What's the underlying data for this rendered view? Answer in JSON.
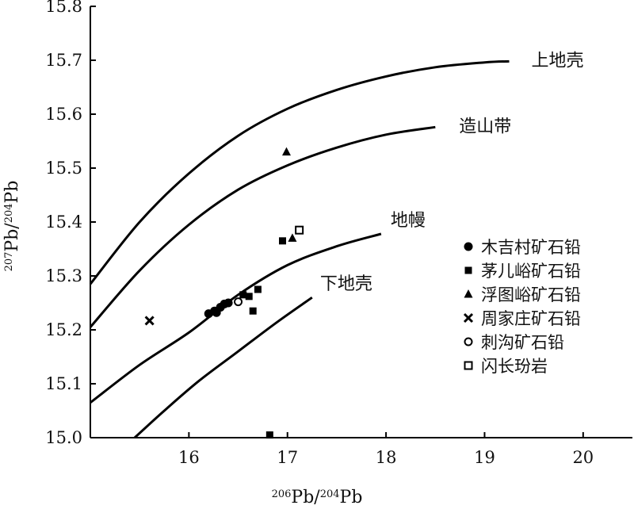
{
  "chart_data": {
    "type": "scatter",
    "title": "",
    "xlabel": {
      "parts": [
        {
          "text": "206",
          "sup": true
        },
        {
          "text": "Pb/",
          "sup": false
        },
        {
          "text": "204",
          "sup": true
        },
        {
          "text": "Pb",
          "sup": false
        }
      ]
    },
    "ylabel": {
      "parts": [
        {
          "text": "207",
          "sup": true
        },
        {
          "text": "Pb/",
          "sup": false
        },
        {
          "text": "204",
          "sup": true
        },
        {
          "text": "Pb",
          "sup": false
        }
      ]
    },
    "xlim": [
      15.0,
      20.5
    ],
    "ylim": [
      15.0,
      15.8
    ],
    "xticks": [
      16,
      17,
      18,
      19,
      20
    ],
    "yticks": [
      15.0,
      15.1,
      15.2,
      15.3,
      15.4,
      15.5,
      15.6,
      15.7,
      15.8
    ],
    "xtick_labels": [
      "16",
      "17",
      "18",
      "19",
      "20"
    ],
    "ytick_labels": [
      "15.0",
      "15.1",
      "15.2",
      "15.3",
      "15.4",
      "15.5",
      "15.6",
      "15.7",
      "15.8"
    ],
    "grid": false,
    "legend_position": "right",
    "curves": [
      {
        "label": "上地壳",
        "points": [
          [
            15.0,
            15.285
          ],
          [
            15.5,
            15.4
          ],
          [
            16.0,
            15.49
          ],
          [
            16.5,
            15.56
          ],
          [
            17.0,
            15.61
          ],
          [
            17.5,
            15.645
          ],
          [
            18.0,
            15.67
          ],
          [
            18.5,
            15.687
          ],
          [
            19.0,
            15.696
          ],
          [
            19.25,
            15.698
          ]
        ]
      },
      {
        "label": "造山带",
        "points": [
          [
            15.0,
            15.205
          ],
          [
            15.5,
            15.31
          ],
          [
            16.0,
            15.395
          ],
          [
            16.5,
            15.46
          ],
          [
            17.0,
            15.505
          ],
          [
            17.5,
            15.538
          ],
          [
            18.0,
            15.562
          ],
          [
            18.5,
            15.576
          ]
        ]
      },
      {
        "label": "地幔",
        "points": [
          [
            15.0,
            15.065
          ],
          [
            15.5,
            15.135
          ],
          [
            16.0,
            15.195
          ],
          [
            16.5,
            15.265
          ],
          [
            17.0,
            15.32
          ],
          [
            17.5,
            15.355
          ],
          [
            17.95,
            15.378
          ]
        ]
      },
      {
        "label": "下地壳",
        "points": [
          [
            15.45,
            15.0
          ],
          [
            15.75,
            15.05
          ],
          [
            16.1,
            15.105
          ],
          [
            16.5,
            15.16
          ],
          [
            16.9,
            15.215
          ],
          [
            17.25,
            15.26
          ]
        ]
      }
    ],
    "series": [
      {
        "name": "木吉村矿石铅",
        "marker": "circle",
        "points": [
          [
            16.2,
            15.23
          ],
          [
            16.26,
            15.235
          ],
          [
            16.28,
            15.232
          ],
          [
            16.32,
            15.242
          ],
          [
            16.36,
            15.248
          ],
          [
            16.4,
            15.25
          ]
        ]
      },
      {
        "name": "茅儿峪矿石铅",
        "marker": "square",
        "points": [
          [
            16.55,
            15.265
          ],
          [
            16.61,
            15.262
          ],
          [
            16.65,
            15.235
          ],
          [
            16.7,
            15.275
          ],
          [
            16.95,
            15.365
          ],
          [
            16.82,
            15.005
          ]
        ]
      },
      {
        "name": "浮图峪矿石铅",
        "marker": "triangle",
        "points": [
          [
            16.99,
            15.53
          ],
          [
            17.05,
            15.37
          ]
        ]
      },
      {
        "name": "周家庄矿石铅",
        "marker": "cross",
        "points": [
          [
            15.6,
            15.217
          ]
        ]
      },
      {
        "name": "刺沟矿石铅",
        "marker": "open-circle",
        "points": [
          [
            16.5,
            15.252
          ]
        ]
      },
      {
        "name": "闪长玢岩",
        "marker": "open-square",
        "points": [
          [
            17.12,
            15.385
          ]
        ]
      }
    ]
  }
}
